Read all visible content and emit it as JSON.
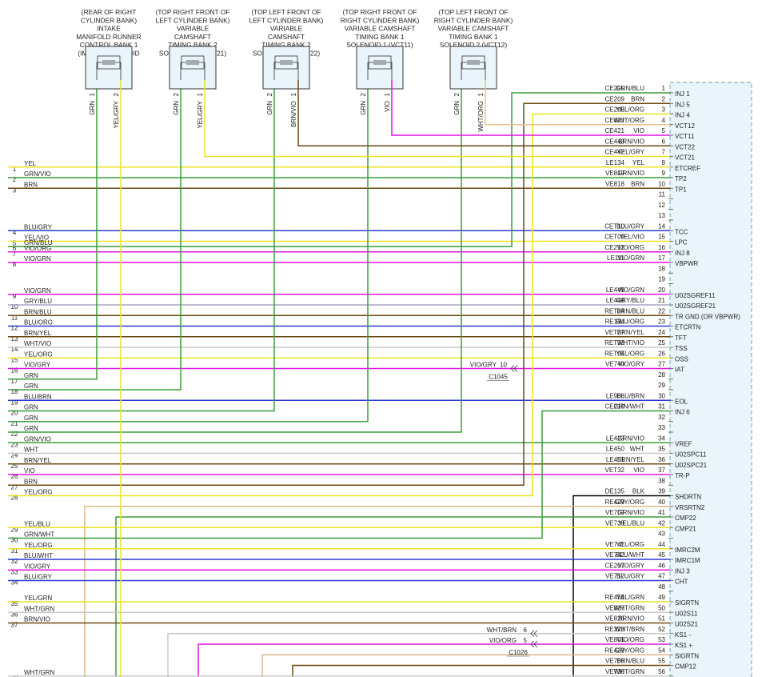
{
  "solenoids": [
    {
      "label": [
        "(REAR OF RIGHT",
        "CYLINDER BANK)",
        "INTAKE",
        "MANIFOLD RUNNER",
        "CONTROL BANK 1",
        "(IMRC1) SOLENOID"
      ],
      "pins": [
        {
          "num": 1,
          "color": "GRN"
        },
        {
          "num": 2,
          "color": "YEL/GRY"
        }
      ]
    },
    {
      "label": [
        "(TOP RIGHT FRONT OF",
        "LEFT CYLINDER BANK)",
        "VARIABLE",
        "CAMSHAFT",
        "TIMING BANK 2",
        "SOLENOID 1 (VCT21)"
      ],
      "pins": [
        {
          "num": 2,
          "color": "GRN"
        },
        {
          "num": 1,
          "color": "YEL/GRY"
        }
      ]
    },
    {
      "label": [
        "(TOP LEFT FRONT OF",
        "LEFT CYLINDER BANK)",
        "VARIABLE",
        "CAMSHAFT",
        "TIMING BANK 2",
        "SOLENOID 2 (VCT22)"
      ],
      "pins": [
        {
          "num": 2,
          "color": "GRN"
        },
        {
          "num": 1,
          "color": "BRN/VIO"
        }
      ]
    },
    {
      "label": [
        "(TOP RIGHT FRONT OF",
        "RIGHT CYLINDER BANK)",
        "VARIABLE CAMSHAFT",
        "TIMING BANK 1",
        "SOLENOID 1 (VCT11)"
      ],
      "pins": [
        {
          "num": 2,
          "color": "GRN"
        },
        {
          "num": 1,
          "color": "VIO"
        }
      ]
    },
    {
      "label": [
        "(TOP LEFT FRONT OF",
        "RIGHT CYLINDER BANK)",
        "VARIABLE CAMSHAFT",
        "TIMING BANK 1",
        "SOLENOID 2 (VCT12)"
      ],
      "pins": [
        {
          "num": 2,
          "color": "GRN"
        },
        {
          "num": 1,
          "color": "WHT/ORG"
        }
      ]
    }
  ],
  "left_wires": [
    {
      "num": 1,
      "color": "YEL"
    },
    {
      "num": 2,
      "color": "GRN/VIO"
    },
    {
      "num": 3,
      "color": "BRN"
    },
    {
      "num": 4,
      "color": "BLU/GRY"
    },
    {
      "num": 5,
      "color": "YEL/VIO"
    },
    {
      "num": 6,
      "color": "GRN/BLU"
    },
    {
      "num": 7,
      "color": "VIO/ORG"
    },
    {
      "num": 8,
      "color": "VIO/GRN"
    },
    {
      "num": 9,
      "color": "VIO/GRN"
    },
    {
      "num": 10,
      "color": "GRY/BLU"
    },
    {
      "num": 11,
      "color": "BRN/BLU"
    },
    {
      "num": 12,
      "color": "BLU/ORG"
    },
    {
      "num": 13,
      "color": "BRN/YEL"
    },
    {
      "num": 14,
      "color": "WHT/VIO"
    },
    {
      "num": 15,
      "color": "YEL/ORG"
    },
    {
      "num": 16,
      "color": "VIO/GRY"
    },
    {
      "num": 17,
      "color": "GRN"
    },
    {
      "num": 18,
      "color": "GRN"
    },
    {
      "num": 19,
      "color": "BLU/BRN"
    },
    {
      "num": 20,
      "color": "GRN"
    },
    {
      "num": 21,
      "color": "GRN"
    },
    {
      "num": 22,
      "color": "GRN"
    },
    {
      "num": 23,
      "color": "GRN/VIO"
    },
    {
      "num": 24,
      "color": "WHT"
    },
    {
      "num": 25,
      "color": "BRN/YEL"
    },
    {
      "num": 26,
      "color": "VIO"
    },
    {
      "num": 27,
      "color": "BRN"
    },
    {
      "num": 28,
      "color": "YEL/ORG"
    },
    {
      "num": 29,
      "color": "YEL/BLU"
    },
    {
      "num": 30,
      "color": "GRN/WHT"
    },
    {
      "num": 31,
      "color": "YEL/ORG"
    },
    {
      "num": 32,
      "color": "BLU/WHT"
    },
    {
      "num": 33,
      "color": "VIO/GRY"
    },
    {
      "num": 34,
      "color": "BLU/GRY"
    },
    {
      "num": 35,
      "color": "YEL/GRN"
    },
    {
      "num": 36,
      "color": "WHT/GRN"
    },
    {
      "num": 37,
      "color": "BRN/VIO"
    },
    {
      "num": 38,
      "color": "WHT/GRN"
    }
  ],
  "connector_pins": [
    {
      "pin": 1,
      "circuit": "CE205",
      "color": "GRN/BLU",
      "function": "INJ 1"
    },
    {
      "pin": 2,
      "circuit": "CE209",
      "color": "BRN",
      "function": "INJ 5"
    },
    {
      "pin": 3,
      "circuit": "CE208",
      "color": "YEL/ORG",
      "function": "INJ 4"
    },
    {
      "pin": 4,
      "circuit": "CE422",
      "color": "WHT/ORG",
      "function": "VCT12"
    },
    {
      "pin": 5,
      "circuit": "CE421",
      "color": "VIO",
      "function": "VCT11"
    },
    {
      "pin": 6,
      "circuit": "CE443",
      "color": "BRN/VIO",
      "function": "VCT22"
    },
    {
      "pin": 7,
      "circuit": "CE442",
      "color": "YEL/GRY",
      "function": "VCT21"
    },
    {
      "pin": 8,
      "circuit": "LE134",
      "color": "YEL",
      "function": "ETCREF"
    },
    {
      "pin": 9,
      "circuit": "VE819",
      "color": "GRN/VIO",
      "function": "TP2"
    },
    {
      "pin": 10,
      "circuit": "VE818",
      "color": "BRN",
      "function": "TP1"
    },
    {
      "pin": 11
    },
    {
      "pin": 12
    },
    {
      "pin": 13
    },
    {
      "pin": 14,
      "circuit": "CET10",
      "color": "BLU/GRY",
      "function": "TCC"
    },
    {
      "pin": 15,
      "circuit": "CET09",
      "color": "YEL/VIO",
      "function": "LPC"
    },
    {
      "pin": 16,
      "circuit": "CE212",
      "color": "VIO/ORG",
      "function": "INJ 8"
    },
    {
      "pin": 17,
      "circuit": "LE111",
      "color": "VIO/GRN",
      "function": "VBPWR"
    },
    {
      "pin": 18
    },
    {
      "pin": 19
    },
    {
      "pin": 20,
      "circuit": "LE449",
      "color": "VIO/GRN",
      "function": "U02SGREF11"
    },
    {
      "pin": 21,
      "circuit": "LE448",
      "color": "GRY/BLU",
      "function": "U02SGREF21"
    },
    {
      "pin": 22,
      "circuit": "RET24",
      "color": "BRN/BLU",
      "function": "TR GND   (OR VBPWR)"
    },
    {
      "pin": 23,
      "circuit": "RE134",
      "color": "BLU/ORG",
      "function": "ETCRTN"
    },
    {
      "pin": 24,
      "circuit": "VET27",
      "color": "BRN/YEL",
      "function": "TFT"
    },
    {
      "pin": 25,
      "circuit": "RET33",
      "color": "WHT/VIO",
      "function": "TSS"
    },
    {
      "pin": 26,
      "circuit": "RET04",
      "color": "YEL/ORG",
      "function": "OSS"
    },
    {
      "pin": 27,
      "circuit": "VE740",
      "color": "VIO/GRY",
      "function": "IAT"
    },
    {
      "pin": 28
    },
    {
      "pin": 29
    },
    {
      "pin": 30,
      "circuit": "LE908",
      "color": "BLU/BRN",
      "function": "EOL"
    },
    {
      "pin": 31,
      "circuit": "CE210",
      "color": "GRN/WHT",
      "function": "INJ 6"
    },
    {
      "pin": 32
    },
    {
      "pin": 33
    },
    {
      "pin": 34,
      "circuit": "LE423",
      "color": "GRN/VIO",
      "function": "VREF"
    },
    {
      "pin": 35,
      "circuit": "LE450",
      "color": "WHT",
      "function": "U02SPC11"
    },
    {
      "pin": 36,
      "circuit": "LE451",
      "color": "BRN/YEL",
      "function": "U02SPC21"
    },
    {
      "pin": 37,
      "circuit": "VET32",
      "color": "VIO",
      "function": "TR-P"
    },
    {
      "pin": 38
    },
    {
      "pin": 39,
      "circuit": "DE135",
      "color": "BLK",
      "function": "SHDRTN"
    },
    {
      "pin": 40,
      "circuit": "RE429",
      "color": "GRY/ORG",
      "function": "VRSRTN2"
    },
    {
      "pin": 41,
      "circuit": "VE707",
      "color": "GRN/VIO",
      "function": "CMP22"
    },
    {
      "pin": 42,
      "circuit": "VE738",
      "color": "YEL/BLU",
      "function": "CMP21"
    },
    {
      "pin": 43
    },
    {
      "pin": 44,
      "circuit": "VE741",
      "color": "YEL/ORG",
      "function": "IMRC2M"
    },
    {
      "pin": 45,
      "circuit": "VE742",
      "color": "BLU/WHT",
      "function": "IMRC1M"
    },
    {
      "pin": 46,
      "circuit": "CE207",
      "color": "VIO/GRY",
      "function": "INJ 3"
    },
    {
      "pin": 47,
      "circuit": "VE712",
      "color": "BLU/GRY",
      "function": "CHT"
    },
    {
      "pin": 48
    },
    {
      "pin": 49,
      "circuit": "RE454",
      "color": "YEL/GRN",
      "function": "SIGRTN"
    },
    {
      "pin": 50,
      "circuit": "VE827",
      "color": "WHT/GRN",
      "function": "U02S11"
    },
    {
      "pin": 51,
      "circuit": "VE826",
      "color": "BRN/VIO",
      "function": "U02S21"
    },
    {
      "pin": 52,
      "circuit": "RE323",
      "color": "WHT/BRN",
      "function": "KS1 -"
    },
    {
      "pin": 53,
      "circuit": "VE801",
      "color": "VIO/ORG",
      "function": "KS1 +"
    },
    {
      "pin": 54,
      "circuit": "RE429",
      "color": "GRY/ORG",
      "function": "SIGRTN"
    },
    {
      "pin": 55,
      "circuit": "VE706",
      "color": "BRN/BLU",
      "function": "CMP12"
    },
    {
      "pin": 56,
      "circuit": "VE736",
      "color": "WHT/GRN"
    }
  ],
  "inline_connectors": [
    {
      "id": "C1045",
      "pins": [
        {
          "wire": "VIO/GRY",
          "pin": 10
        }
      ]
    },
    {
      "id": "C1026",
      "pins": [
        {
          "wire": "WHT/BRN",
          "pin": 6
        },
        {
          "wire": "VIO/ORG",
          "pin": 5
        }
      ]
    }
  ]
}
